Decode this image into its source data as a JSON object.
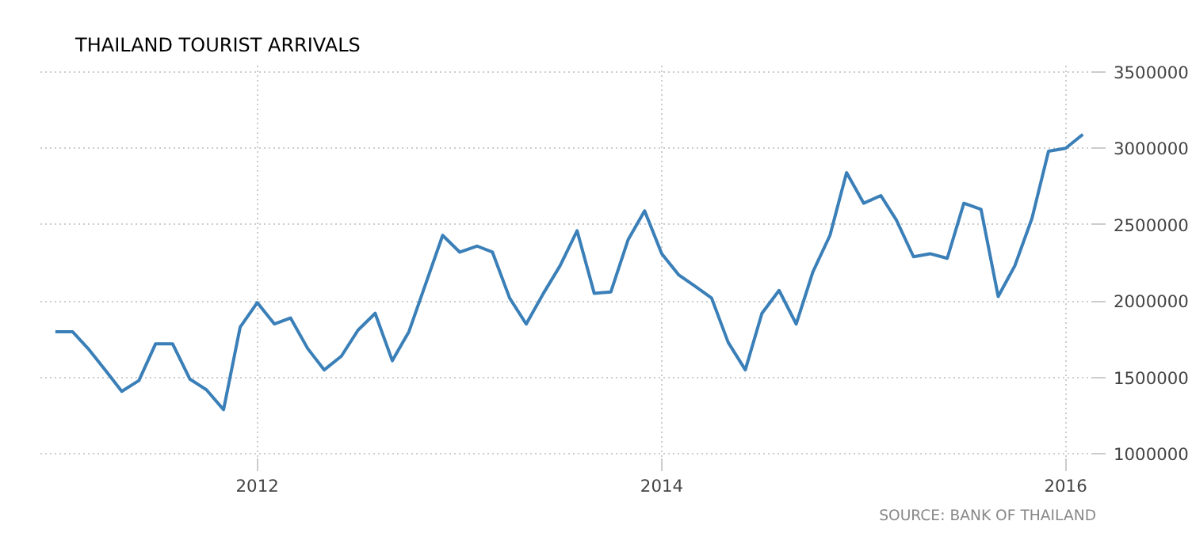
{
  "chart_data": {
    "type": "line",
    "title": "THAILAND TOURIST ARRIVALS",
    "x": [
      "2011-01",
      "2011-02",
      "2011-03",
      "2011-04",
      "2011-05",
      "2011-06",
      "2011-07",
      "2011-08",
      "2011-09",
      "2011-10",
      "2011-11",
      "2011-12",
      "2012-01",
      "2012-02",
      "2012-03",
      "2012-04",
      "2012-05",
      "2012-06",
      "2012-07",
      "2012-08",
      "2012-09",
      "2012-10",
      "2012-11",
      "2012-12",
      "2013-01",
      "2013-02",
      "2013-03",
      "2013-04",
      "2013-05",
      "2013-06",
      "2013-07",
      "2013-08",
      "2013-09",
      "2013-10",
      "2013-11",
      "2013-12",
      "2014-01",
      "2014-02",
      "2014-03",
      "2014-04",
      "2014-05",
      "2014-06",
      "2014-07",
      "2014-08",
      "2014-09",
      "2014-10",
      "2014-11",
      "2014-12",
      "2015-01",
      "2015-02",
      "2015-03",
      "2015-04",
      "2015-05",
      "2015-06",
      "2015-07",
      "2015-08",
      "2015-09",
      "2015-10",
      "2015-11",
      "2015-12",
      "2016-01",
      "2016-02"
    ],
    "series": [
      {
        "color": "#3a7fb8",
        "values": [
          1800000,
          1800000,
          1690000,
          1550000,
          1410000,
          1480000,
          1720000,
          1720000,
          1490000,
          1420000,
          1290000,
          1830000,
          1990000,
          1850000,
          1890000,
          1690000,
          1550000,
          1640000,
          1810000,
          1920000,
          1610000,
          1800000,
          2120000,
          2430000,
          2320000,
          2360000,
          2320000,
          2020000,
          1850000,
          2050000,
          2230000,
          2460000,
          2050000,
          2060000,
          2400000,
          2590000,
          2310000,
          2170000,
          2100000,
          2020000,
          1730000,
          1550000,
          1920000,
          2070000,
          1850000,
          2190000,
          2430000,
          2840000,
          2640000,
          2690000,
          2530000,
          2290000,
          2310000,
          2280000,
          2640000,
          2600000,
          2030000,
          2230000,
          2540000,
          2980000,
          3000000,
          3090000
        ]
      }
    ],
    "xlim": [
      "2010-12-05",
      "2016-02-25"
    ],
    "xticks": [
      "2012",
      "2014",
      "2016"
    ],
    "ylim": [
      950000,
      3550000
    ],
    "yticks": [
      1000000,
      1500000,
      2000000,
      2500000,
      3000000,
      3500000
    ],
    "grid": true,
    "marker": "none",
    "line_style": "solid",
    "annotations": [
      "SOURCE: BANK OF THAILAND"
    ]
  }
}
